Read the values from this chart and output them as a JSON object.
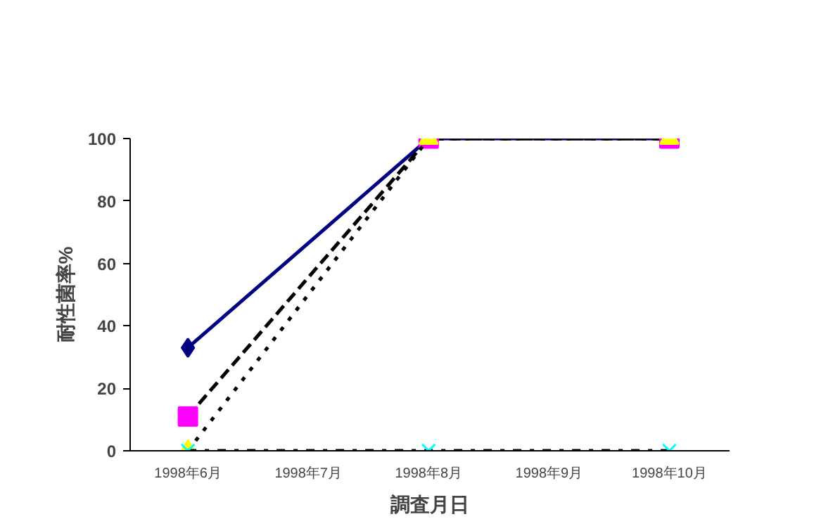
{
  "chart_data": {
    "type": "line",
    "xlabel": "調査月日",
    "ylabel": "耐性菌率%",
    "categories": [
      "1998年6月",
      "1998年7月",
      "1998年8月",
      "1998年9月",
      "1998年10月"
    ],
    "ylim": [
      0,
      100
    ],
    "yticks": [
      0,
      20,
      40,
      60,
      80,
      100
    ],
    "grid": false,
    "series": [
      {
        "color": "#000080",
        "marker": "diamond",
        "line_style": "solid",
        "values": [
          33,
          null,
          100,
          null,
          100
        ]
      },
      {
        "color": "#ff00ff",
        "marker": "square",
        "line_style": "dashed",
        "values": [
          11,
          null,
          100,
          null,
          100
        ]
      },
      {
        "color": "#ffff00",
        "marker": "triangle",
        "line_style": "dotted",
        "values": [
          0,
          null,
          100,
          null,
          100
        ]
      },
      {
        "color": "#00ffff",
        "marker": "cross",
        "line_style": "dashdot",
        "values": [
          0,
          null,
          0,
          null,
          0
        ]
      }
    ]
  }
}
